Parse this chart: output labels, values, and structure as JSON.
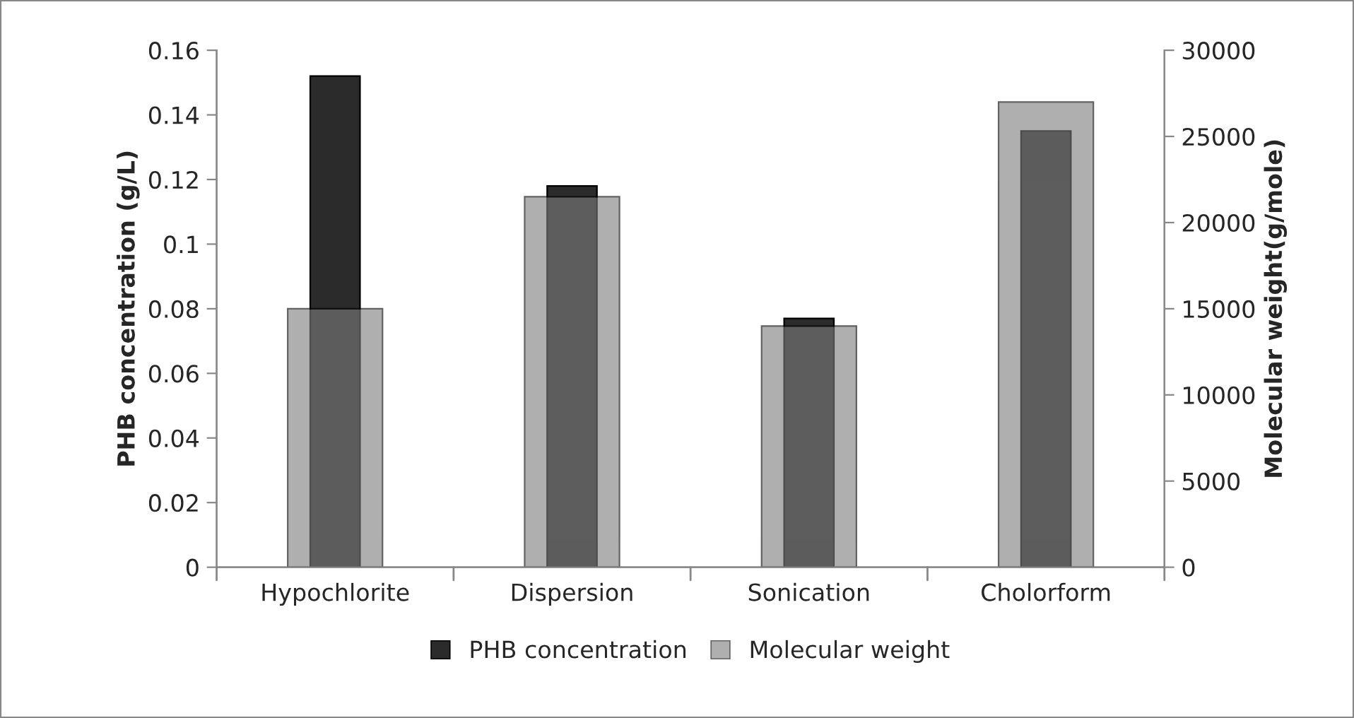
{
  "chart_data": {
    "type": "bar",
    "categories": [
      "Hypochlorite",
      "Dispersion",
      "Sonication",
      "Cholorform"
    ],
    "ylabel": "PHB concentration (g/L)",
    "y2label": "Molecular weight(g/mole)",
    "series": [
      {
        "name": "PHB concentration",
        "color": "#2b2b2b",
        "values": [
          0.152,
          0.118,
          0.077,
          0.135
        ]
      },
      {
        "name": "Molecular weight",
        "color": "#7d7d7d",
        "axis": "y2",
        "values": [
          15000,
          21500,
          14000,
          27000
        ]
      }
    ],
    "ylim": [
      0,
      0.16
    ],
    "yticks": [
      {
        "value": 0,
        "label": "0"
      },
      0.02,
      0.04,
      0.06,
      0.08,
      0.1,
      0.12,
      0.14,
      0.16
    ],
    "y2lim": [
      0,
      30000
    ],
    "y2ticks": [
      0,
      5000,
      10000,
      15000,
      20000,
      25000,
      30000
    ],
    "legend": "bottom",
    "grid": false
  }
}
